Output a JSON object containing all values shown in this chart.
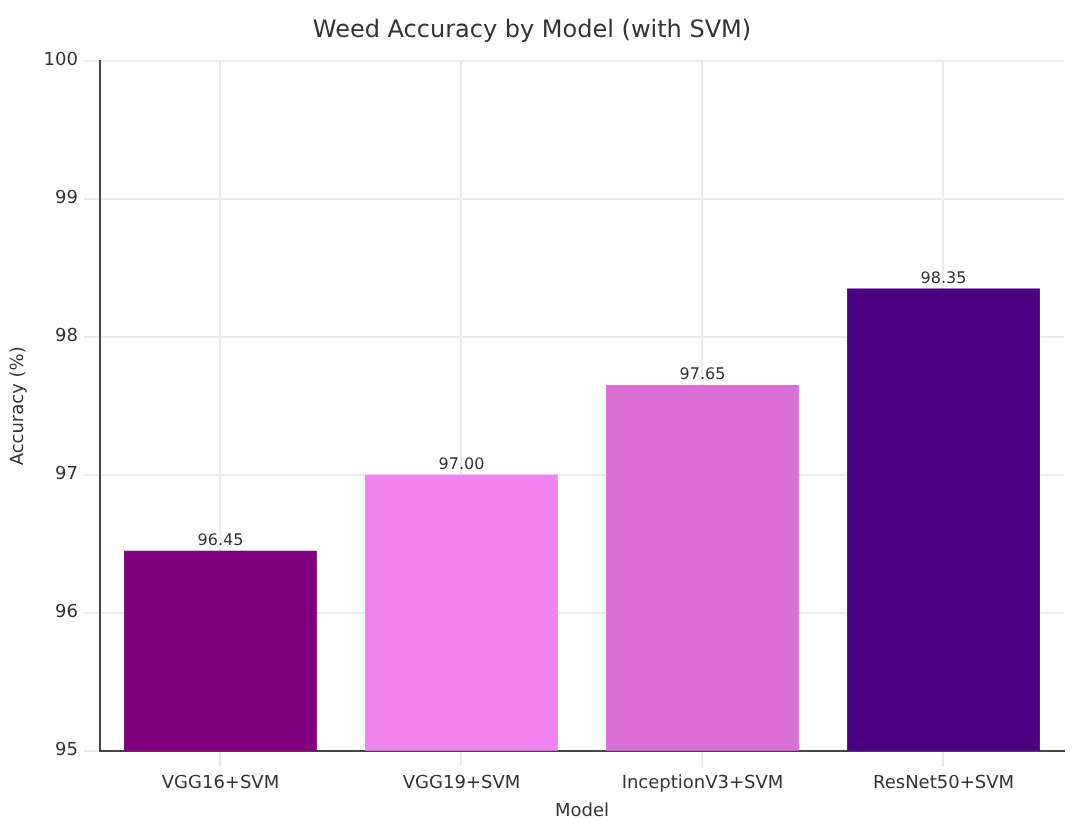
{
  "chart_data": {
    "type": "bar",
    "title": "Weed Accuracy by Model (with SVM)",
    "xlabel": "Model",
    "ylabel": "Accuracy (%)",
    "categories": [
      "VGG16+SVM",
      "VGG19+SVM",
      "InceptionV3+SVM",
      "ResNet50+SVM"
    ],
    "values": [
      96.45,
      97.0,
      97.65,
      98.35
    ],
    "colors": [
      "#800080",
      "#ee82ee",
      "#da70d6",
      "#4b0082"
    ],
    "value_labels": [
      "96.45",
      "97.00",
      "97.65",
      "98.35"
    ],
    "ylim": [
      95,
      100
    ],
    "yticks": [
      95,
      96,
      97,
      98,
      99,
      100
    ],
    "grid": true
  }
}
